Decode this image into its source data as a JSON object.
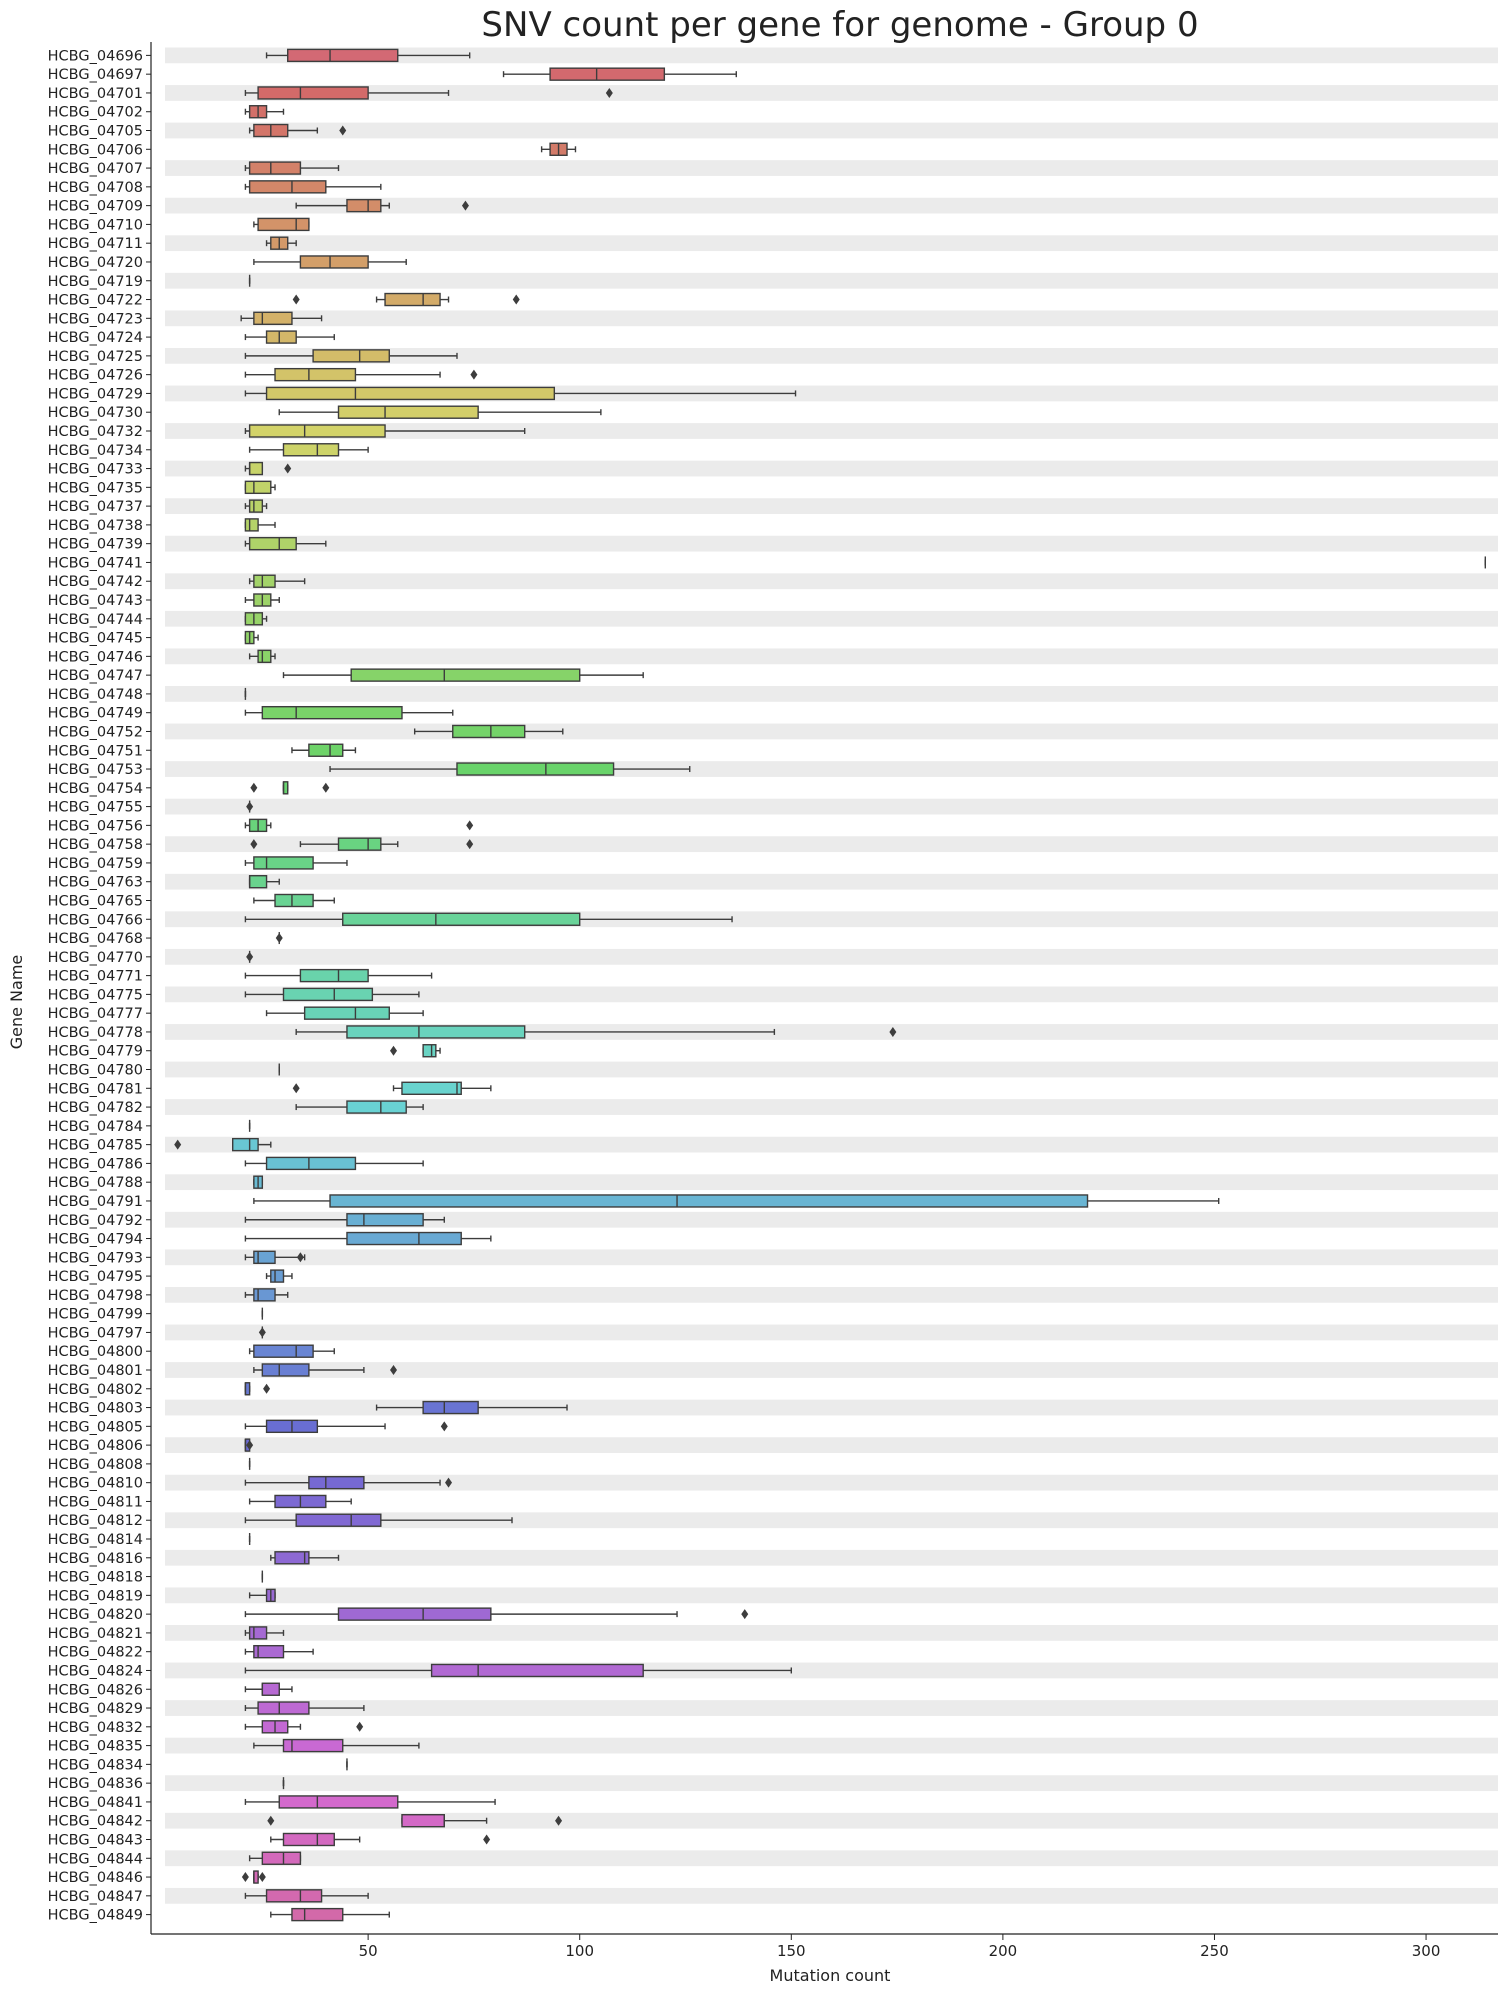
{
  "chart_data": {
    "type": "box",
    "orientation": "horizontal",
    "title": "SNV count per gene for genome - Group 0",
    "xlabel": "Mutation count",
    "ylabel": "Gene Name",
    "xlim": [
      2,
      317
    ],
    "xticks": [
      50,
      100,
      150,
      200,
      250,
      300
    ],
    "grid": false,
    "row_stripes": true,
    "box_color_start": "#e0808a",
    "box_color_end": "#e884c0",
    "genes": [
      {
        "name": "HCBG_04696",
        "wl": 26,
        "q1": 31,
        "med": 41,
        "q3": 57,
        "wh": 74,
        "out": []
      },
      {
        "name": "HCBG_04697",
        "wl": 82,
        "q1": 93,
        "med": 104,
        "q3": 120,
        "wh": 137,
        "out": []
      },
      {
        "name": "HCBG_04701",
        "wl": 21,
        "q1": 24,
        "med": 34,
        "q3": 50,
        "wh": 69,
        "out": [
          107
        ]
      },
      {
        "name": "HCBG_04702",
        "wl": 21,
        "q1": 22,
        "med": 24,
        "q3": 26,
        "wh": 30,
        "out": []
      },
      {
        "name": "HCBG_04705",
        "wl": 22,
        "q1": 23,
        "med": 27,
        "q3": 31,
        "wh": 38,
        "out": [
          44
        ]
      },
      {
        "name": "HCBG_04706",
        "wl": 91,
        "q1": 93,
        "med": 95,
        "q3": 97,
        "wh": 99,
        "out": []
      },
      {
        "name": "HCBG_04707",
        "wl": 21,
        "q1": 22,
        "med": 27,
        "q3": 34,
        "wh": 43,
        "out": []
      },
      {
        "name": "HCBG_04708",
        "wl": 21,
        "q1": 22,
        "med": 32,
        "q3": 40,
        "wh": 53,
        "out": []
      },
      {
        "name": "HCBG_04709",
        "wl": 33,
        "q1": 45,
        "med": 50,
        "q3": 53,
        "wh": 55,
        "out": [
          73
        ]
      },
      {
        "name": "HCBG_04710",
        "wl": 23,
        "q1": 24,
        "med": 33,
        "q3": 36,
        "wh": 36,
        "out": []
      },
      {
        "name": "HCBG_04711",
        "wl": 26,
        "q1": 27,
        "med": 29,
        "q3": 31,
        "wh": 33,
        "out": []
      },
      {
        "name": "HCBG_04720",
        "wl": 23,
        "q1": 34,
        "med": 41,
        "q3": 50,
        "wh": 59,
        "out": []
      },
      {
        "name": "HCBG_04719",
        "wl": 22,
        "q1": 22,
        "med": 22,
        "q3": 22,
        "wh": 22,
        "out": []
      },
      {
        "name": "HCBG_04722",
        "wl": 52,
        "q1": 54,
        "med": 63,
        "q3": 67,
        "wh": 69,
        "out": [
          33,
          85
        ]
      },
      {
        "name": "HCBG_04723",
        "wl": 20,
        "q1": 23,
        "med": 25,
        "q3": 32,
        "wh": 39,
        "out": []
      },
      {
        "name": "HCBG_04724",
        "wl": 21,
        "q1": 26,
        "med": 29,
        "q3": 33,
        "wh": 42,
        "out": []
      },
      {
        "name": "HCBG_04725",
        "wl": 21,
        "q1": 37,
        "med": 48,
        "q3": 55,
        "wh": 71,
        "out": []
      },
      {
        "name": "HCBG_04726",
        "wl": 21,
        "q1": 28,
        "med": 36,
        "q3": 47,
        "wh": 67,
        "out": [
          75
        ]
      },
      {
        "name": "HCBG_04729",
        "wl": 21,
        "q1": 26,
        "med": 47,
        "q3": 94,
        "wh": 151,
        "out": []
      },
      {
        "name": "HCBG_04730",
        "wl": 29,
        "q1": 43,
        "med": 54,
        "q3": 76,
        "wh": 105,
        "out": []
      },
      {
        "name": "HCBG_04732",
        "wl": 21,
        "q1": 22,
        "med": 35,
        "q3": 54,
        "wh": 87,
        "out": []
      },
      {
        "name": "HCBG_04734",
        "wl": 22,
        "q1": 30,
        "med": 38,
        "q3": 43,
        "wh": 50,
        "out": []
      },
      {
        "name": "HCBG_04733",
        "wl": 21,
        "q1": 22,
        "med": 22,
        "q3": 25,
        "wh": 25,
        "out": [
          31
        ]
      },
      {
        "name": "HCBG_04735",
        "wl": 21,
        "q1": 21,
        "med": 23,
        "q3": 27,
        "wh": 28,
        "out": []
      },
      {
        "name": "HCBG_04737",
        "wl": 21,
        "q1": 22,
        "med": 23,
        "q3": 25,
        "wh": 26,
        "out": []
      },
      {
        "name": "HCBG_04738",
        "wl": 21,
        "q1": 21,
        "med": 22,
        "q3": 24,
        "wh": 28,
        "out": []
      },
      {
        "name": "HCBG_04739",
        "wl": 21,
        "q1": 22,
        "med": 29,
        "q3": 33,
        "wh": 40,
        "out": []
      },
      {
        "name": "HCBG_04741",
        "wl": 314,
        "q1": 314,
        "med": 314,
        "q3": 314,
        "wh": 314,
        "out": []
      },
      {
        "name": "HCBG_04742",
        "wl": 22,
        "q1": 23,
        "med": 25,
        "q3": 28,
        "wh": 35,
        "out": []
      },
      {
        "name": "HCBG_04743",
        "wl": 21,
        "q1": 23,
        "med": 25,
        "q3": 27,
        "wh": 29,
        "out": []
      },
      {
        "name": "HCBG_04744",
        "wl": 21,
        "q1": 21,
        "med": 23,
        "q3": 25,
        "wh": 26,
        "out": []
      },
      {
        "name": "HCBG_04745",
        "wl": 21,
        "q1": 21,
        "med": 22,
        "q3": 23,
        "wh": 24,
        "out": []
      },
      {
        "name": "HCBG_04746",
        "wl": 22,
        "q1": 24,
        "med": 25,
        "q3": 27,
        "wh": 28,
        "out": []
      },
      {
        "name": "HCBG_04747",
        "wl": 30,
        "q1": 46,
        "med": 68,
        "q3": 100,
        "wh": 115,
        "out": []
      },
      {
        "name": "HCBG_04748",
        "wl": 21,
        "q1": 21,
        "med": 21,
        "q3": 21,
        "wh": 21,
        "out": []
      },
      {
        "name": "HCBG_04749",
        "wl": 21,
        "q1": 25,
        "med": 33,
        "q3": 58,
        "wh": 70,
        "out": []
      },
      {
        "name": "HCBG_04752",
        "wl": 61,
        "q1": 70,
        "med": 79,
        "q3": 87,
        "wh": 96,
        "out": []
      },
      {
        "name": "HCBG_04751",
        "wl": 32,
        "q1": 36,
        "med": 41,
        "q3": 44,
        "wh": 47,
        "out": []
      },
      {
        "name": "HCBG_04753",
        "wl": 41,
        "q1": 71,
        "med": 92,
        "q3": 108,
        "wh": 126,
        "out": []
      },
      {
        "name": "HCBG_04754",
        "wl": 30,
        "q1": 30,
        "med": 30,
        "q3": 31,
        "wh": 31,
        "out": [
          23,
          40
        ]
      },
      {
        "name": "HCBG_04755",
        "wl": 22,
        "q1": 22,
        "med": 22,
        "q3": 22,
        "wh": 22,
        "out": [
          22
        ]
      },
      {
        "name": "HCBG_04756",
        "wl": 21,
        "q1": 22,
        "med": 24,
        "q3": 26,
        "wh": 27,
        "out": [
          74
        ]
      },
      {
        "name": "HCBG_04758",
        "wl": 34,
        "q1": 43,
        "med": 50,
        "q3": 53,
        "wh": 57,
        "out": [
          23,
          74
        ]
      },
      {
        "name": "HCBG_04759",
        "wl": 21,
        "q1": 23,
        "med": 26,
        "q3": 37,
        "wh": 45,
        "out": []
      },
      {
        "name": "HCBG_04763",
        "wl": 22,
        "q1": 22,
        "med": 22,
        "q3": 26,
        "wh": 29,
        "out": []
      },
      {
        "name": "HCBG_04765",
        "wl": 23,
        "q1": 28,
        "med": 32,
        "q3": 37,
        "wh": 42,
        "out": []
      },
      {
        "name": "HCBG_04766",
        "wl": 21,
        "q1": 44,
        "med": 66,
        "q3": 100,
        "wh": 136,
        "out": []
      },
      {
        "name": "HCBG_04768",
        "wl": 29,
        "q1": 29,
        "med": 29,
        "q3": 29,
        "wh": 29,
        "out": [
          29
        ]
      },
      {
        "name": "HCBG_04770",
        "wl": 22,
        "q1": 22,
        "med": 22,
        "q3": 22,
        "wh": 22,
        "out": [
          22
        ]
      },
      {
        "name": "HCBG_04771",
        "wl": 21,
        "q1": 34,
        "med": 43,
        "q3": 50,
        "wh": 65,
        "out": []
      },
      {
        "name": "HCBG_04775",
        "wl": 21,
        "q1": 30,
        "med": 42,
        "q3": 51,
        "wh": 62,
        "out": []
      },
      {
        "name": "HCBG_04777",
        "wl": 26,
        "q1": 35,
        "med": 47,
        "q3": 55,
        "wh": 63,
        "out": []
      },
      {
        "name": "HCBG_04778",
        "wl": 33,
        "q1": 45,
        "med": 62,
        "q3": 87,
        "wh": 146,
        "out": [
          174
        ]
      },
      {
        "name": "HCBG_04779",
        "wl": 63,
        "q1": 63,
        "med": 65,
        "q3": 66,
        "wh": 67,
        "out": [
          56
        ]
      },
      {
        "name": "HCBG_04780",
        "wl": 29,
        "q1": 29,
        "med": 29,
        "q3": 29,
        "wh": 29,
        "out": []
      },
      {
        "name": "HCBG_04781",
        "wl": 56,
        "q1": 58,
        "med": 71,
        "q3": 72,
        "wh": 79,
        "out": [
          33
        ]
      },
      {
        "name": "HCBG_04782",
        "wl": 33,
        "q1": 45,
        "med": 53,
        "q3": 59,
        "wh": 63,
        "out": []
      },
      {
        "name": "HCBG_04784",
        "wl": 22,
        "q1": 22,
        "med": 22,
        "q3": 22,
        "wh": 22,
        "out": []
      },
      {
        "name": "HCBG_04785",
        "wl": 18,
        "q1": 18,
        "med": 22,
        "q3": 24,
        "wh": 27,
        "out": [
          5
        ]
      },
      {
        "name": "HCBG_04786",
        "wl": 21,
        "q1": 26,
        "med": 36,
        "q3": 47,
        "wh": 63,
        "out": []
      },
      {
        "name": "HCBG_04788",
        "wl": 23,
        "q1": 23,
        "med": 24,
        "q3": 25,
        "wh": 25,
        "out": []
      },
      {
        "name": "HCBG_04791",
        "wl": 23,
        "q1": 41,
        "med": 123,
        "q3": 220,
        "wh": 251,
        "out": []
      },
      {
        "name": "HCBG_04792",
        "wl": 21,
        "q1": 45,
        "med": 49,
        "q3": 63,
        "wh": 68,
        "out": []
      },
      {
        "name": "HCBG_04794",
        "wl": 21,
        "q1": 45,
        "med": 62,
        "q3": 72,
        "wh": 79,
        "out": []
      },
      {
        "name": "HCBG_04793",
        "wl": 21,
        "q1": 23,
        "med": 24,
        "q3": 28,
        "wh": 35,
        "out": [
          34
        ]
      },
      {
        "name": "HCBG_04795",
        "wl": 26,
        "q1": 27,
        "med": 28,
        "q3": 30,
        "wh": 32,
        "out": []
      },
      {
        "name": "HCBG_04798",
        "wl": 21,
        "q1": 23,
        "med": 24,
        "q3": 28,
        "wh": 31,
        "out": []
      },
      {
        "name": "HCBG_04799",
        "wl": 25,
        "q1": 25,
        "med": 25,
        "q3": 25,
        "wh": 25,
        "out": []
      },
      {
        "name": "HCBG_04797",
        "wl": 25,
        "q1": 25,
        "med": 25,
        "q3": 25,
        "wh": 25,
        "out": [
          25
        ]
      },
      {
        "name": "HCBG_04800",
        "wl": 22,
        "q1": 23,
        "med": 33,
        "q3": 37,
        "wh": 42,
        "out": []
      },
      {
        "name": "HCBG_04801",
        "wl": 23,
        "q1": 25,
        "med": 29,
        "q3": 36,
        "wh": 49,
        "out": [
          56
        ]
      },
      {
        "name": "HCBG_04802",
        "wl": 21,
        "q1": 21,
        "med": 21,
        "q3": 22,
        "wh": 22,
        "out": [
          26
        ]
      },
      {
        "name": "HCBG_04803",
        "wl": 52,
        "q1": 63,
        "med": 68,
        "q3": 76,
        "wh": 97,
        "out": []
      },
      {
        "name": "HCBG_04805",
        "wl": 21,
        "q1": 26,
        "med": 32,
        "q3": 38,
        "wh": 54,
        "out": [
          68
        ]
      },
      {
        "name": "HCBG_04806",
        "wl": 21,
        "q1": 21,
        "med": 21,
        "q3": 22,
        "wh": 22,
        "out": [
          22
        ]
      },
      {
        "name": "HCBG_04808",
        "wl": 22,
        "q1": 22,
        "med": 22,
        "q3": 22,
        "wh": 22,
        "out": []
      },
      {
        "name": "HCBG_04810",
        "wl": 21,
        "q1": 36,
        "med": 40,
        "q3": 49,
        "wh": 67,
        "out": [
          69
        ]
      },
      {
        "name": "HCBG_04811",
        "wl": 22,
        "q1": 28,
        "med": 34,
        "q3": 40,
        "wh": 46,
        "out": []
      },
      {
        "name": "HCBG_04812",
        "wl": 21,
        "q1": 33,
        "med": 46,
        "q3": 53,
        "wh": 84,
        "out": []
      },
      {
        "name": "HCBG_04814",
        "wl": 22,
        "q1": 22,
        "med": 22,
        "q3": 22,
        "wh": 22,
        "out": []
      },
      {
        "name": "HCBG_04816",
        "wl": 27,
        "q1": 28,
        "med": 35,
        "q3": 36,
        "wh": 43,
        "out": []
      },
      {
        "name": "HCBG_04818",
        "wl": 25,
        "q1": 25,
        "med": 25,
        "q3": 25,
        "wh": 25,
        "out": []
      },
      {
        "name": "HCBG_04819",
        "wl": 22,
        "q1": 26,
        "med": 27,
        "q3": 28,
        "wh": 28,
        "out": []
      },
      {
        "name": "HCBG_04820",
        "wl": 21,
        "q1": 43,
        "med": 63,
        "q3": 79,
        "wh": 123,
        "out": [
          139
        ]
      },
      {
        "name": "HCBG_04821",
        "wl": 21,
        "q1": 22,
        "med": 23,
        "q3": 26,
        "wh": 30,
        "out": []
      },
      {
        "name": "HCBG_04822",
        "wl": 21,
        "q1": 23,
        "med": 24,
        "q3": 30,
        "wh": 37,
        "out": []
      },
      {
        "name": "HCBG_04824",
        "wl": 21,
        "q1": 65,
        "med": 76,
        "q3": 115,
        "wh": 150,
        "out": []
      },
      {
        "name": "HCBG_04826",
        "wl": 21,
        "q1": 25,
        "med": 25,
        "q3": 29,
        "wh": 32,
        "out": []
      },
      {
        "name": "HCBG_04829",
        "wl": 21,
        "q1": 24,
        "med": 29,
        "q3": 36,
        "wh": 49,
        "out": []
      },
      {
        "name": "HCBG_04832",
        "wl": 21,
        "q1": 25,
        "med": 28,
        "q3": 31,
        "wh": 34,
        "out": [
          48
        ]
      },
      {
        "name": "HCBG_04835",
        "wl": 23,
        "q1": 30,
        "med": 32,
        "q3": 44,
        "wh": 62,
        "out": []
      },
      {
        "name": "HCBG_04834",
        "wl": 45,
        "q1": 45,
        "med": 45,
        "q3": 45,
        "wh": 45,
        "out": []
      },
      {
        "name": "HCBG_04836",
        "wl": 30,
        "q1": 30,
        "med": 30,
        "q3": 30,
        "wh": 30,
        "out": []
      },
      {
        "name": "HCBG_04841",
        "wl": 21,
        "q1": 29,
        "med": 38,
        "q3": 57,
        "wh": 80,
        "out": []
      },
      {
        "name": "HCBG_04842",
        "wl": 58,
        "q1": 58,
        "med": 68,
        "q3": 68,
        "wh": 78,
        "out": [
          27,
          95
        ]
      },
      {
        "name": "HCBG_04843",
        "wl": 27,
        "q1": 30,
        "med": 38,
        "q3": 42,
        "wh": 48,
        "out": [
          78
        ]
      },
      {
        "name": "HCBG_04844",
        "wl": 22,
        "q1": 25,
        "med": 30,
        "q3": 34,
        "wh": 34,
        "out": []
      },
      {
        "name": "HCBG_04846",
        "wl": 23,
        "q1": 23,
        "med": 23,
        "q3": 24,
        "wh": 24,
        "out": [
          21,
          25
        ]
      },
      {
        "name": "HCBG_04847",
        "wl": 21,
        "q1": 26,
        "med": 34,
        "q3": 39,
        "wh": 50,
        "out": []
      },
      {
        "name": "HCBG_04849",
        "wl": 27,
        "q1": 32,
        "med": 35,
        "q3": 44,
        "wh": 55,
        "out": []
      }
    ]
  }
}
